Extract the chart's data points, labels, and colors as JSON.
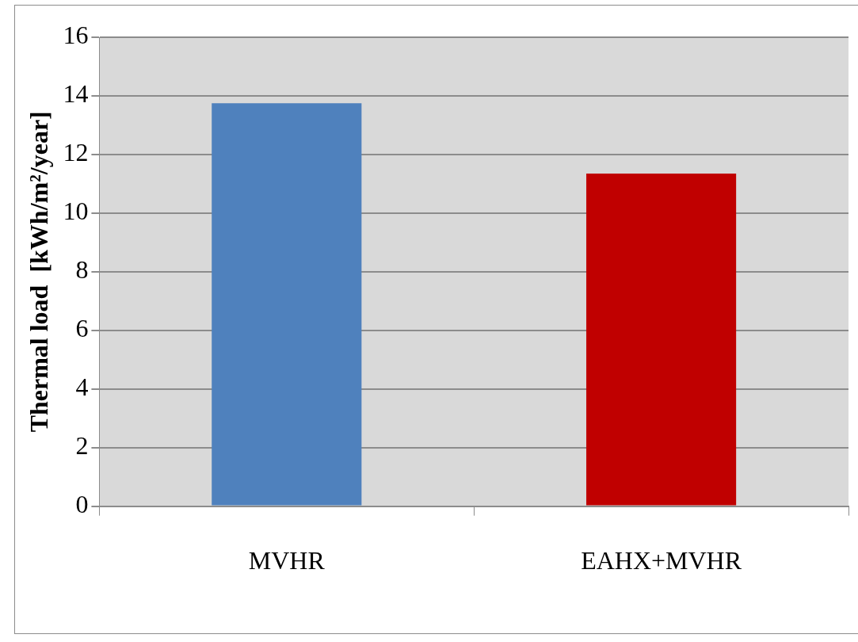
{
  "chart_data": {
    "type": "bar",
    "ylabel": "Thermal load  [kWh/m²/year]",
    "categories": [
      "MVHR",
      "EAHX+MVHR"
    ],
    "values": [
      13.75,
      11.35
    ],
    "colors": [
      "#4f81bd",
      "#c00000"
    ],
    "ylim": [
      0,
      16
    ],
    "yticks": [
      0,
      2,
      4,
      6,
      8,
      10,
      12,
      14,
      16
    ],
    "grid": "y",
    "legend": false
  }
}
